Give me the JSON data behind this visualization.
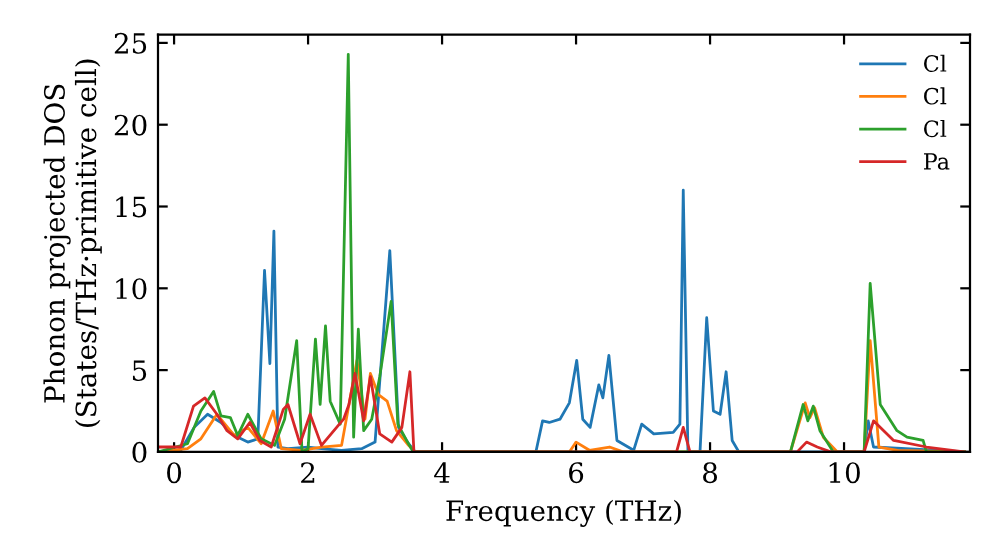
{
  "chart_data": {
    "type": "line",
    "xlabel": "Frequency (THz)",
    "ylabel": "Phonon projected DOS\n(States/THz·primitive cell)",
    "xlim": [
      -0.24,
      11.88
    ],
    "ylim": [
      0,
      25.5
    ],
    "xticks": [
      0,
      2,
      4,
      6,
      8,
      10
    ],
    "yticks": [
      0,
      5,
      10,
      15,
      20,
      25
    ],
    "grid": false,
    "legend": "top right",
    "marker": "none",
    "line_style": "solid",
    "series": [
      {
        "name": "Cl",
        "color": "#1f77b4",
        "x": [
          -0.24,
          0.1,
          0.3,
          0.5,
          0.7,
          0.9,
          1.1,
          1.25,
          1.35,
          1.43,
          1.49,
          1.55,
          1.7,
          2.0,
          2.2,
          2.5,
          2.8,
          3.0,
          3.22,
          3.35,
          3.5,
          3.6,
          5.4,
          5.5,
          5.6,
          5.76,
          5.9,
          6.01,
          6.1,
          6.21,
          6.34,
          6.4,
          6.49,
          6.61,
          6.86,
          6.98,
          7.16,
          7.45,
          7.55,
          7.6,
          7.67,
          7.85,
          7.95,
          8.05,
          8.15,
          8.24,
          8.33,
          8.43,
          10.3,
          10.36,
          10.44,
          11.8
        ],
        "values": [
          0,
          0.1,
          1.5,
          2.3,
          1.8,
          1.0,
          0.6,
          0.8,
          11.1,
          5.4,
          13.5,
          0.3,
          0.2,
          0.3,
          0.2,
          0.1,
          0.2,
          0.6,
          12.3,
          1.5,
          0.5,
          0,
          0,
          1.9,
          1.8,
          2.0,
          3.0,
          5.6,
          2.0,
          1.5,
          4.1,
          3.3,
          5.9,
          0.7,
          0.1,
          1.7,
          1.1,
          1.2,
          1.7,
          16.0,
          0,
          0,
          8.2,
          2.5,
          2.3,
          4.9,
          0.7,
          0,
          0,
          1.9,
          0.3,
          0
        ]
      },
      {
        "name": "Cl",
        "color": "#ff7f0e",
        "x": [
          -0.24,
          0.2,
          0.4,
          0.64,
          0.9,
          1.1,
          1.3,
          1.48,
          1.6,
          1.9,
          2.2,
          2.5,
          2.73,
          2.85,
          2.93,
          3.05,
          3.18,
          3.32,
          3.5,
          3.6,
          5.9,
          6.0,
          6.2,
          6.5,
          6.7,
          9.2,
          9.42,
          9.49,
          9.56,
          9.69,
          9.9,
          10.3,
          10.39,
          10.52,
          10.8,
          11.8
        ],
        "values": [
          0,
          0.2,
          0.8,
          2.3,
          1.0,
          1.5,
          0.5,
          2.5,
          0.2,
          0.1,
          0.3,
          0.4,
          5.6,
          2.0,
          4.8,
          3.5,
          3.1,
          1.3,
          0.4,
          0,
          0,
          0.6,
          0.1,
          0.3,
          0,
          0,
          3.0,
          2.1,
          2.7,
          0.9,
          0,
          0,
          6.8,
          0.3,
          0.1,
          0
        ]
      },
      {
        "name": "Cl",
        "color": "#2ca02c",
        "x": [
          -0.24,
          0.2,
          0.4,
          0.59,
          0.7,
          0.84,
          0.95,
          1.1,
          1.3,
          1.5,
          1.65,
          1.83,
          1.91,
          2.0,
          2.11,
          2.18,
          2.26,
          2.33,
          2.48,
          2.6,
          2.68,
          2.75,
          2.83,
          2.95,
          3.07,
          3.24,
          3.34,
          3.47,
          3.57,
          9.2,
          9.39,
          9.46,
          9.54,
          9.64,
          9.84,
          10.3,
          10.39,
          10.54,
          10.79,
          10.94,
          11.18,
          11.23,
          11.8
        ],
        "values": [
          0,
          0.5,
          2.5,
          3.7,
          2.2,
          2.1,
          1.0,
          2.3,
          0.8,
          0.4,
          2.0,
          6.8,
          0,
          0.2,
          6.9,
          2.9,
          7.7,
          3.1,
          1.7,
          24.3,
          0.9,
          7.5,
          1.3,
          2.0,
          4.6,
          9.2,
          1.7,
          0.7,
          0,
          0,
          2.9,
          1.9,
          2.8,
          1.3,
          0,
          0,
          10.3,
          2.9,
          1.3,
          0.9,
          0.7,
          0,
          0
        ]
      },
      {
        "name": "Pa",
        "color": "#d62728",
        "x": [
          -0.24,
          0.1,
          0.29,
          0.46,
          0.64,
          0.79,
          0.95,
          1.13,
          1.28,
          1.45,
          1.63,
          1.7,
          1.88,
          2.03,
          2.2,
          2.53,
          2.61,
          2.7,
          2.83,
          2.93,
          3.07,
          3.25,
          3.4,
          3.52,
          3.58,
          7.5,
          7.6,
          7.7,
          9.3,
          9.44,
          9.6,
          9.8,
          10.3,
          10.44,
          10.74,
          11.23,
          11.8
        ],
        "values": [
          0.3,
          0.3,
          2.8,
          3.3,
          2.3,
          1.3,
          0.8,
          1.8,
          0.7,
          0.3,
          2.6,
          2.9,
          0.5,
          2.3,
          0.4,
          2.0,
          2.9,
          4.8,
          1.9,
          4.6,
          1.1,
          0.6,
          1.5,
          4.9,
          0,
          0,
          1.5,
          0,
          0,
          0.6,
          0.3,
          0,
          0,
          1.9,
          0.7,
          0.3,
          0
        ]
      }
    ]
  }
}
